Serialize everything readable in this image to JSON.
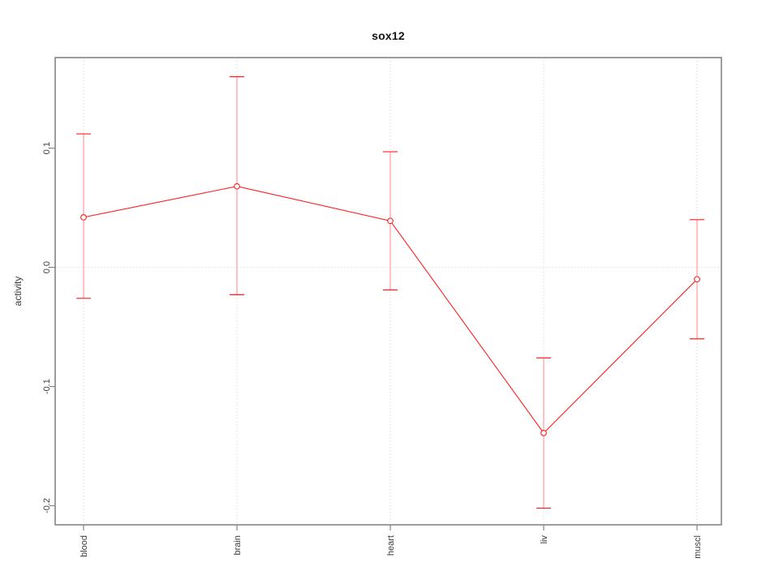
{
  "page": {
    "background": "#ffffff"
  },
  "chart_data": {
    "type": "line",
    "title": "sox12",
    "xlabel": "",
    "ylabel": "activity",
    "categories": [
      "blood",
      "brain",
      "heart",
      "liv",
      "muscl"
    ],
    "series": [
      {
        "name": "activity",
        "values": [
          0.042,
          0.068,
          0.039,
          -0.139,
          -0.01
        ],
        "lower": [
          -0.026,
          -0.023,
          -0.019,
          -0.202,
          -0.06
        ],
        "upper": [
          0.112,
          0.16,
          0.097,
          -0.076,
          0.04
        ]
      }
    ],
    "ylim": [
      -0.216,
      0.176
    ],
    "yticks": [
      {
        "value": 0.1,
        "label": "0.1"
      },
      {
        "value": 0.0,
        "label": "0.0"
      },
      {
        "value": -0.1,
        "label": "-0.1"
      },
      {
        "value": -0.2,
        "label": "-0.2"
      }
    ],
    "grid": {
      "style": "dotted",
      "horizontal_at": [
        0
      ],
      "vertical_at_categories": true
    },
    "legend": "none",
    "marker": "open-circle",
    "colors": {
      "series": "#ff1f1f",
      "error_stem": "#ff9b9b",
      "grid": "#dcdcdc",
      "box": "#858585",
      "tick": "#858585",
      "tick_label": "#3d3d3d",
      "title": "#141414"
    }
  }
}
